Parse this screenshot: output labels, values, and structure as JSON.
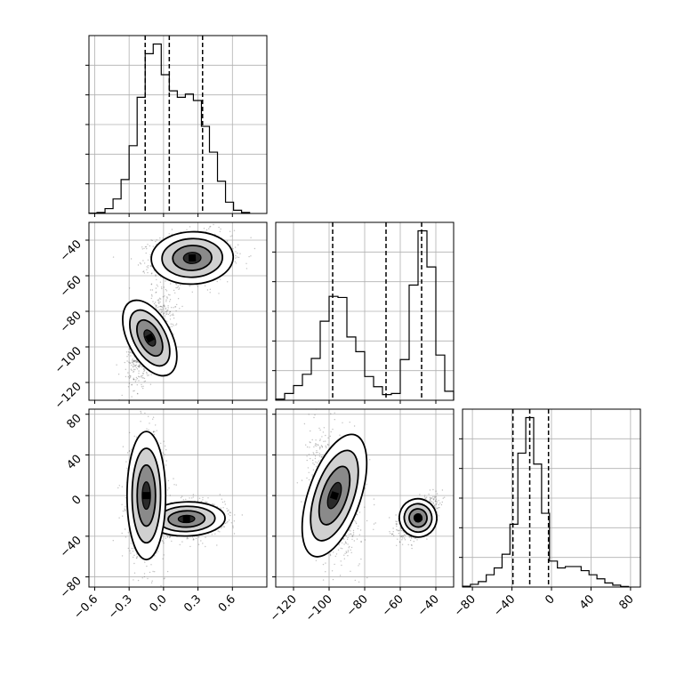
{
  "chart_data": {
    "type": "corner",
    "grid": true,
    "colors": {
      "ink": "#000000",
      "grid": "#b0b0b0",
      "cloud": "#4a4a4a"
    },
    "panels": {
      "hist_p0": {
        "type": "histogram",
        "xlim": [
          -0.65,
          0.9
        ],
        "bins": [
          [
            -0.65,
            0.001
          ],
          [
            -0.58,
            0.003
          ],
          [
            -0.51,
            0.015
          ],
          [
            -0.44,
            0.045
          ],
          [
            -0.37,
            0.105
          ],
          [
            -0.3,
            0.21
          ],
          [
            -0.23,
            0.36
          ],
          [
            -0.16,
            0.495
          ],
          [
            -0.09,
            0.525
          ],
          [
            -0.02,
            0.43
          ],
          [
            0.05,
            0.38
          ],
          [
            0.12,
            0.36
          ],
          [
            0.19,
            0.37
          ],
          [
            0.26,
            0.35
          ],
          [
            0.33,
            0.27
          ],
          [
            0.4,
            0.19
          ],
          [
            0.47,
            0.1
          ],
          [
            0.54,
            0.035
          ],
          [
            0.61,
            0.01
          ],
          [
            0.68,
            0.003
          ]
        ],
        "binwidth": 0.07,
        "quantiles": [
          -0.16,
          0.05,
          0.34
        ]
      },
      "hist_p1": {
        "type": "histogram",
        "xlim": [
          -130,
          -30
        ],
        "bins": [
          [
            -130,
            0.005
          ],
          [
            -125,
            0.03
          ],
          [
            -120,
            0.065
          ],
          [
            -115,
            0.115
          ],
          [
            -110,
            0.185
          ],
          [
            -105,
            0.35
          ],
          [
            -100,
            0.46
          ],
          [
            -95,
            0.455
          ],
          [
            -90,
            0.28
          ],
          [
            -85,
            0.215
          ],
          [
            -80,
            0.105
          ],
          [
            -75,
            0.06
          ],
          [
            -70,
            0.025
          ],
          [
            -65,
            0.03
          ],
          [
            -60,
            0.18
          ],
          [
            -55,
            0.51
          ],
          [
            -50,
            0.75
          ],
          [
            -45,
            0.59
          ],
          [
            -40,
            0.2
          ],
          [
            -35,
            0.04
          ]
        ],
        "binwidth": 5,
        "quantiles": [
          -98,
          -68,
          -48
        ]
      },
      "hist_p2": {
        "type": "histogram",
        "xlim": [
          -90,
          90
        ],
        "bins": [
          [
            -90,
            0.003
          ],
          [
            -82,
            0.01
          ],
          [
            -74,
            0.02
          ],
          [
            -66,
            0.045
          ],
          [
            -58,
            0.07
          ],
          [
            -50,
            0.12
          ],
          [
            -42,
            0.23
          ],
          [
            -34,
            0.49
          ],
          [
            -26,
            0.62
          ],
          [
            -18,
            0.45
          ],
          [
            -10,
            0.27
          ],
          [
            -2,
            0.095
          ],
          [
            6,
            0.07
          ],
          [
            14,
            0.075
          ],
          [
            22,
            0.075
          ],
          [
            30,
            0.06
          ],
          [
            38,
            0.045
          ],
          [
            46,
            0.03
          ],
          [
            54,
            0.015
          ],
          [
            62,
            0.007
          ],
          [
            70,
            0.002
          ]
        ],
        "binwidth": 8,
        "quantiles": [
          -39,
          -22,
          -3
        ]
      },
      "scatter_p0_p1": {
        "type": "2d-density",
        "xlim": [
          -0.65,
          0.9
        ],
        "ylim": [
          -130,
          -30
        ],
        "modes": [
          {
            "cx": 0.25,
            "cy": -50,
            "sx": 0.17,
            "sy": 7,
            "rho": 0.1,
            "n": 1300
          },
          {
            "cx": -0.12,
            "cy": -95,
            "sx": 0.09,
            "sy": 11,
            "rho": 0.55,
            "n": 1100
          }
        ]
      },
      "scatter_p0_p2": {
        "type": "2d-density",
        "xlim": [
          -0.65,
          0.9
        ],
        "ylim": [
          -90,
          85
        ],
        "modes": [
          {
            "cx": 0.2,
            "cy": -23,
            "sx": 0.16,
            "sy": 8,
            "rho": 0.1,
            "n": 1200
          },
          {
            "cx": -0.15,
            "cy": 0,
            "sx": 0.08,
            "sy": 30,
            "rho": 0.0,
            "n": 1000
          }
        ]
      },
      "scatter_p1_p2": {
        "type": "2d-density",
        "xlim": [
          -130,
          -30
        ],
        "ylim": [
          -90,
          85
        ],
        "modes": [
          {
            "cx": -50,
            "cy": -22,
            "sx": 5,
            "sy": 9,
            "rho": 0.55,
            "n": 1200
          },
          {
            "cx": -97,
            "cy": 0,
            "sx": 7,
            "sy": 30,
            "rho": -0.25,
            "n": 1000
          }
        ]
      }
    },
    "axes": {
      "p0_ticks": [
        -0.6,
        -0.3,
        0.0,
        0.3,
        0.6
      ],
      "p0_tick_labels": [
        "−0.6",
        "−0.3",
        "0.0",
        "0.3",
        "0.6"
      ],
      "p1_ticks": [
        -120,
        -100,
        -80,
        -60,
        -40
      ],
      "p1_tick_labels": [
        "−120",
        "−100",
        "−80",
        "−60",
        "−40"
      ],
      "p2_ticks": [
        -80,
        -40,
        0,
        40,
        80
      ],
      "p2_tick_labels": [
        "−80",
        "−40",
        "0",
        "40",
        "80"
      ]
    }
  }
}
